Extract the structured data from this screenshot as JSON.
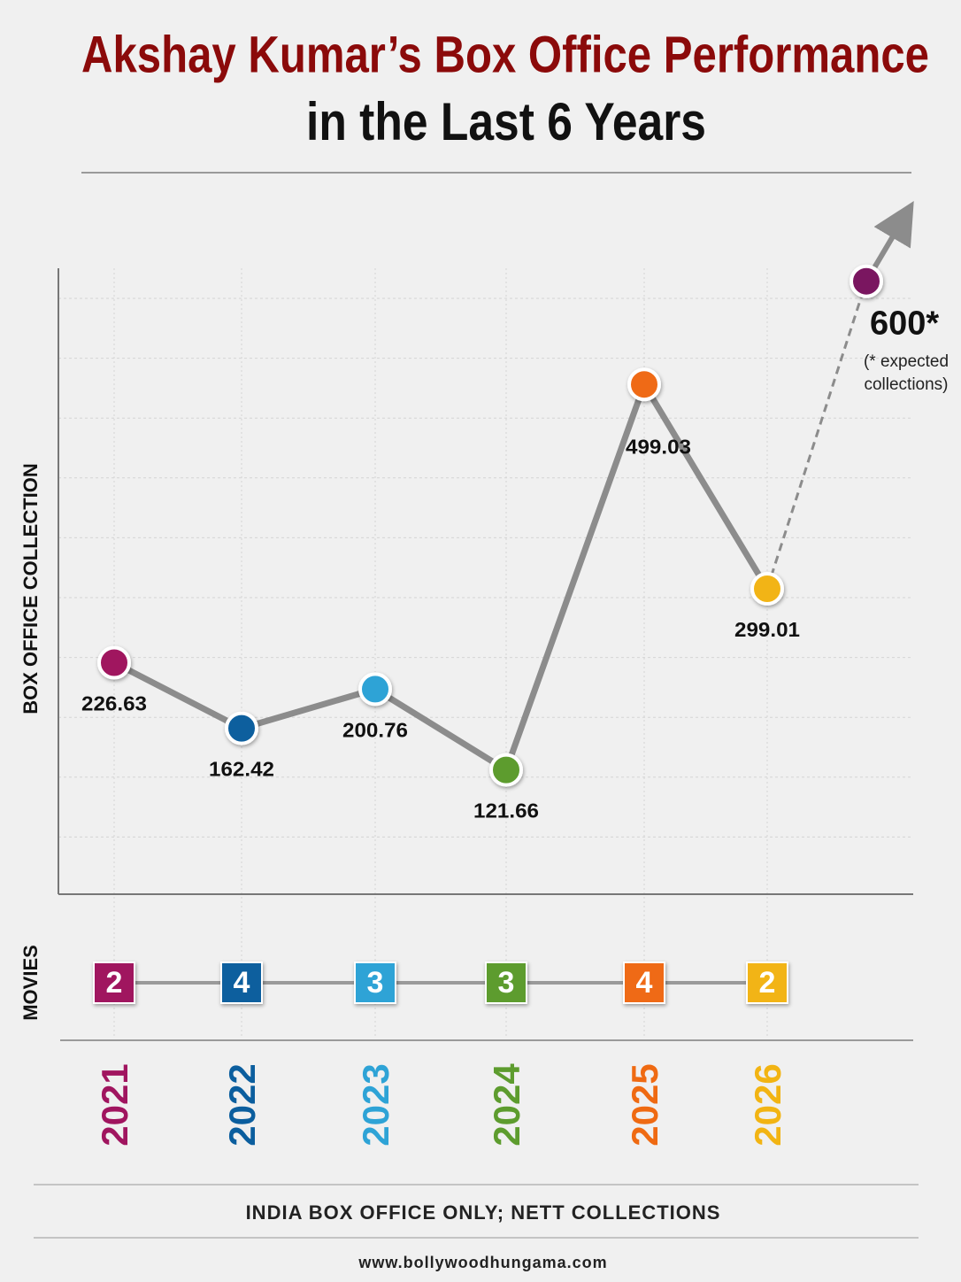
{
  "chart_data": {
    "type": "line",
    "title": "Akshay Kumar’s Box Office Performance",
    "subtitle": "in the Last 6 Years",
    "y_label": "BOX OFFICE COLLECTION",
    "categories": [
      "2021",
      "2022",
      "2023",
      "2024",
      "2025",
      "2026",
      null
    ],
    "values": [
      226.63,
      162.42,
      200.76,
      121.66,
      499.03,
      299.01,
      600
    ],
    "value_labels": [
      "226.63",
      "162.42",
      "200.76",
      "121.66",
      "499.03",
      "299.01",
      "600*"
    ],
    "colors": [
      "#a0155f",
      "#0b5e9e",
      "#2ea3d6",
      "#5d9c2e",
      "#ef6a12",
      "#f2b413",
      "#7a1660"
    ],
    "line_color": "#8c8c8c",
    "ylim": [
      0,
      650
    ],
    "annotation": "(* expected collections)",
    "movies_label": "MOVIES",
    "movies": [
      2,
      4,
      3,
      3,
      4,
      2
    ],
    "footnote": "INDIA BOX OFFICE ONLY; NETT COLLECTIONS",
    "source": "www.bollywoodhungama.com"
  }
}
